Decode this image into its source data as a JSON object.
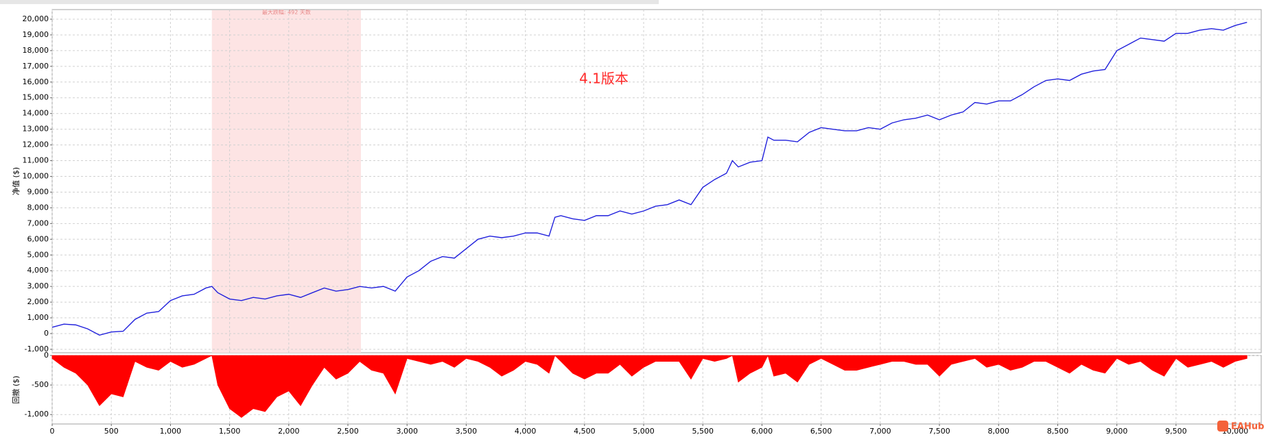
{
  "chart_data": [
    {
      "type": "line",
      "y_label": "净值 ($)",
      "annotation": "4.1版本",
      "highlight": {
        "xlim": [
          1350,
          2610
        ],
        "label": "最大跌幅: 492 天数",
        "color": "#fde4e4"
      },
      "xlim": [
        0,
        10220
      ],
      "ylim": [
        -1220,
        20610
      ],
      "yticks": [
        {
          "value": -1000,
          "label": "-1,000"
        },
        0,
        {
          "value": 1000,
          "label": "1,000"
        },
        {
          "value": 2000,
          "label": "2,000"
        },
        {
          "value": 3000,
          "label": "3,000"
        },
        {
          "value": 4000,
          "label": "4,000"
        },
        {
          "value": 5000,
          "label": "5,000"
        },
        {
          "value": 6000,
          "label": "6,000"
        },
        {
          "value": 7000,
          "label": "7,000"
        },
        {
          "value": 8000,
          "label": "8,000"
        },
        {
          "value": 9000,
          "label": "9,000"
        },
        {
          "value": 10000,
          "label": "10,000"
        },
        {
          "value": 11000,
          "label": "11,000"
        },
        {
          "value": 12000,
          "label": "12,000"
        },
        {
          "value": 13000,
          "label": "13,000"
        },
        {
          "value": 14000,
          "label": "14,000"
        },
        {
          "value": 15000,
          "label": "15,000"
        },
        {
          "value": 16000,
          "label": "16,000"
        },
        {
          "value": 17000,
          "label": "17,000"
        },
        {
          "value": 18000,
          "label": "18,000"
        },
        {
          "value": 19000,
          "label": "19,000"
        },
        {
          "value": 20000,
          "label": "20,000"
        }
      ],
      "grid": true,
      "color": "#1f1fdc",
      "x": [
        0,
        100,
        200,
        300,
        400,
        500,
        600,
        700,
        800,
        900,
        1000,
        1100,
        1200,
        1300,
        1350,
        1400,
        1500,
        1600,
        1700,
        1800,
        1900,
        2000,
        2100,
        2200,
        2300,
        2400,
        2500,
        2600,
        2700,
        2800,
        2900,
        3000,
        3100,
        3200,
        3300,
        3400,
        3500,
        3600,
        3700,
        3800,
        3900,
        4000,
        4100,
        4200,
        4250,
        4300,
        4400,
        4500,
        4600,
        4700,
        4800,
        4900,
        5000,
        5100,
        5200,
        5300,
        5400,
        5500,
        5600,
        5700,
        5750,
        5800,
        5900,
        6000,
        6050,
        6100,
        6200,
        6300,
        6400,
        6500,
        6600,
        6700,
        6800,
        6900,
        7000,
        7100,
        7200,
        7300,
        7400,
        7500,
        7600,
        7700,
        7800,
        7900,
        8000,
        8100,
        8200,
        8300,
        8400,
        8500,
        8600,
        8700,
        8800,
        8900,
        9000,
        9100,
        9200,
        9300,
        9400,
        9500,
        9600,
        9700,
        9800,
        9900,
        10000,
        10100
      ],
      "values": [
        400,
        600,
        550,
        300,
        -100,
        100,
        150,
        900,
        1300,
        1400,
        2100,
        2400,
        2500,
        2900,
        3000,
        2600,
        2200,
        2100,
        2300,
        2200,
        2400,
        2500,
        2300,
        2600,
        2900,
        2700,
        2800,
        3000,
        2900,
        3000,
        2700,
        3600,
        4000,
        4600,
        4900,
        4800,
        5400,
        6000,
        6200,
        6100,
        6200,
        6400,
        6400,
        6200,
        7400,
        7500,
        7300,
        7200,
        7500,
        7500,
        7800,
        7600,
        7800,
        8100,
        8200,
        8500,
        8200,
        9300,
        9800,
        10200,
        11000,
        10600,
        10900,
        11000,
        12500,
        12300,
        12300,
        12200,
        12800,
        13100,
        13000,
        12900,
        12900,
        13100,
        13000,
        13400,
        13600,
        13700,
        13900,
        13600,
        13900,
        14100,
        14700,
        14600,
        14800,
        14800,
        15200,
        15700,
        16100,
        16200,
        16100,
        16500,
        16700,
        16800,
        18000,
        18400,
        18800,
        18700,
        18600,
        19100,
        19100,
        19300,
        19400,
        19300,
        19600,
        19800
      ]
    },
    {
      "type": "area",
      "y_label": "回撤 ($)",
      "watermark": "EAHub",
      "xlim": [
        0,
        10220
      ],
      "ylim": [
        -1160,
        0
      ],
      "xticks": [
        0,
        500,
        {
          "value": 1000,
          "label": "1,000"
        },
        {
          "value": 1500,
          "label": "1,500"
        },
        {
          "value": 2000,
          "label": "2,000"
        },
        {
          "value": 2500,
          "label": "2,500"
        },
        {
          "value": 3000,
          "label": "3,000"
        },
        {
          "value": 3500,
          "label": "3,500"
        },
        {
          "value": 4000,
          "label": "4,000"
        },
        {
          "value": 4500,
          "label": "4,500"
        },
        {
          "value": 5000,
          "label": "5,000"
        },
        {
          "value": 5500,
          "label": "5,500"
        },
        {
          "value": 6000,
          "label": "6,000"
        },
        {
          "value": 6500,
          "label": "6,500"
        },
        {
          "value": 7000,
          "label": "7,000"
        },
        {
          "value": 7500,
          "label": "7,500"
        },
        {
          "value": 8000,
          "label": "8,000"
        },
        {
          "value": 8500,
          "label": "8,500"
        },
        {
          "value": 9000,
          "label": "9,000"
        },
        {
          "value": 9500,
          "label": "9,500"
        },
        {
          "value": 10000,
          "label": "10,000"
        }
      ],
      "yticks": [
        0,
        -500,
        {
          "value": -1000,
          "label": "-1,000"
        }
      ],
      "grid": true,
      "color": "#ff0000",
      "x": [
        0,
        100,
        200,
        300,
        400,
        500,
        600,
        700,
        800,
        900,
        1000,
        1100,
        1200,
        1300,
        1350,
        1400,
        1500,
        1600,
        1700,
        1800,
        1900,
        2000,
        2100,
        2200,
        2300,
        2400,
        2500,
        2600,
        2700,
        2800,
        2900,
        3000,
        3100,
        3200,
        3300,
        3400,
        3500,
        3600,
        3700,
        3800,
        3900,
        4000,
        4100,
        4200,
        4250,
        4300,
        4400,
        4500,
        4600,
        4700,
        4800,
        4900,
        5000,
        5100,
        5200,
        5300,
        5400,
        5500,
        5600,
        5700,
        5750,
        5800,
        5900,
        6000,
        6050,
        6100,
        6200,
        6300,
        6400,
        6500,
        6600,
        6700,
        6800,
        6900,
        7000,
        7100,
        7200,
        7300,
        7400,
        7500,
        7600,
        7700,
        7800,
        7900,
        8000,
        8100,
        8200,
        8300,
        8400,
        8500,
        8600,
        8700,
        8800,
        8900,
        9000,
        9100,
        9200,
        9300,
        9400,
        9500,
        9600,
        9700,
        9800,
        9900,
        10000,
        10100
      ],
      "values": [
        -50,
        -200,
        -300,
        -500,
        -850,
        -650,
        -700,
        -100,
        -200,
        -250,
        -100,
        -200,
        -150,
        -50,
        0,
        -500,
        -900,
        -1050,
        -900,
        -950,
        -700,
        -600,
        -850,
        -500,
        -200,
        -400,
        -300,
        -100,
        -250,
        -300,
        -650,
        -50,
        -100,
        -150,
        -100,
        -200,
        -50,
        -100,
        -200,
        -350,
        -250,
        -100,
        -150,
        -300,
        0,
        -100,
        -300,
        -400,
        -300,
        -300,
        -150,
        -350,
        -200,
        -100,
        -100,
        -100,
        -400,
        -50,
        -100,
        -50,
        0,
        -450,
        -300,
        -200,
        0,
        -350,
        -300,
        -450,
        -150,
        -50,
        -150,
        -250,
        -250,
        -200,
        -150,
        -100,
        -100,
        -150,
        -150,
        -350,
        -150,
        -100,
        -50,
        -200,
        -150,
        -250,
        -200,
        -100,
        -100,
        -200,
        -300,
        -150,
        -250,
        -300,
        -50,
        -150,
        -100,
        -250,
        -350,
        -50,
        -200,
        -150,
        -100,
        -200,
        -100,
        -50
      ]
    }
  ]
}
